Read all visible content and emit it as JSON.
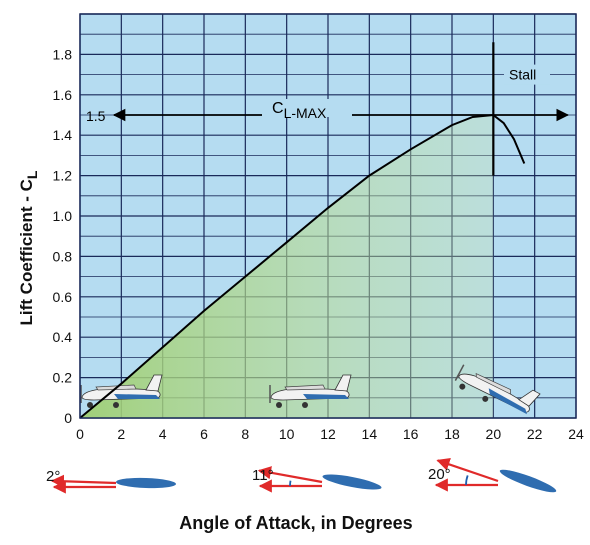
{
  "chart_data": {
    "type": "line",
    "xlabel": "Angle of Attack, in Degrees",
    "ylabel_main": "Lift Coefficient - C",
    "ylabel_sub": "L",
    "xlim": [
      0,
      24
    ],
    "ylim": [
      0,
      2.0
    ],
    "x_ticks": [
      "0",
      "2",
      "4",
      "6",
      "8",
      "10",
      "12",
      "14",
      "16",
      "18",
      "20",
      "22",
      "24"
    ],
    "y_ticks": [
      "0",
      "0.2",
      "0.4",
      "0.6",
      "0.8",
      "1.0",
      "1.2",
      "1.4",
      "1.6",
      "1.8"
    ],
    "grid": true,
    "series": [
      {
        "x": [
          0,
          2,
          4,
          6,
          8,
          10,
          12,
          14,
          16,
          18,
          19,
          20,
          20.5,
          21,
          21.5
        ],
        "y": [
          0,
          0.17,
          0.35,
          0.53,
          0.7,
          0.87,
          1.04,
          1.2,
          1.33,
          1.45,
          1.49,
          1.5,
          1.46,
          1.38,
          1.26
        ]
      }
    ],
    "annotations": {
      "clmax_value": "1.5",
      "clmax_main": "C",
      "clmax_sub": "L-MAX",
      "stall_label": "Stall",
      "stall_x": 20,
      "clmax_y": 1.5
    },
    "aoa_diagrams": [
      {
        "label": "2°",
        "angle": 2
      },
      {
        "label": "11°",
        "angle": 11
      },
      {
        "label": "20°",
        "angle": 20
      }
    ],
    "airplane_icons": [
      {
        "icon": "airplane-level-icon",
        "aoa": 2
      },
      {
        "icon": "airplane-climb-icon",
        "aoa": 11
      },
      {
        "icon": "airplane-pitched-icon",
        "aoa": 20
      }
    ],
    "colors": {
      "plot_bg": "#b5dcf1",
      "grid": "#1a2a5a",
      "curve": "#000000",
      "fill": "#bcdc98",
      "arrow_red": "#e02a2a",
      "wing_blue": "#2f6db0",
      "arc_blue": "#1e5fb0"
    }
  }
}
